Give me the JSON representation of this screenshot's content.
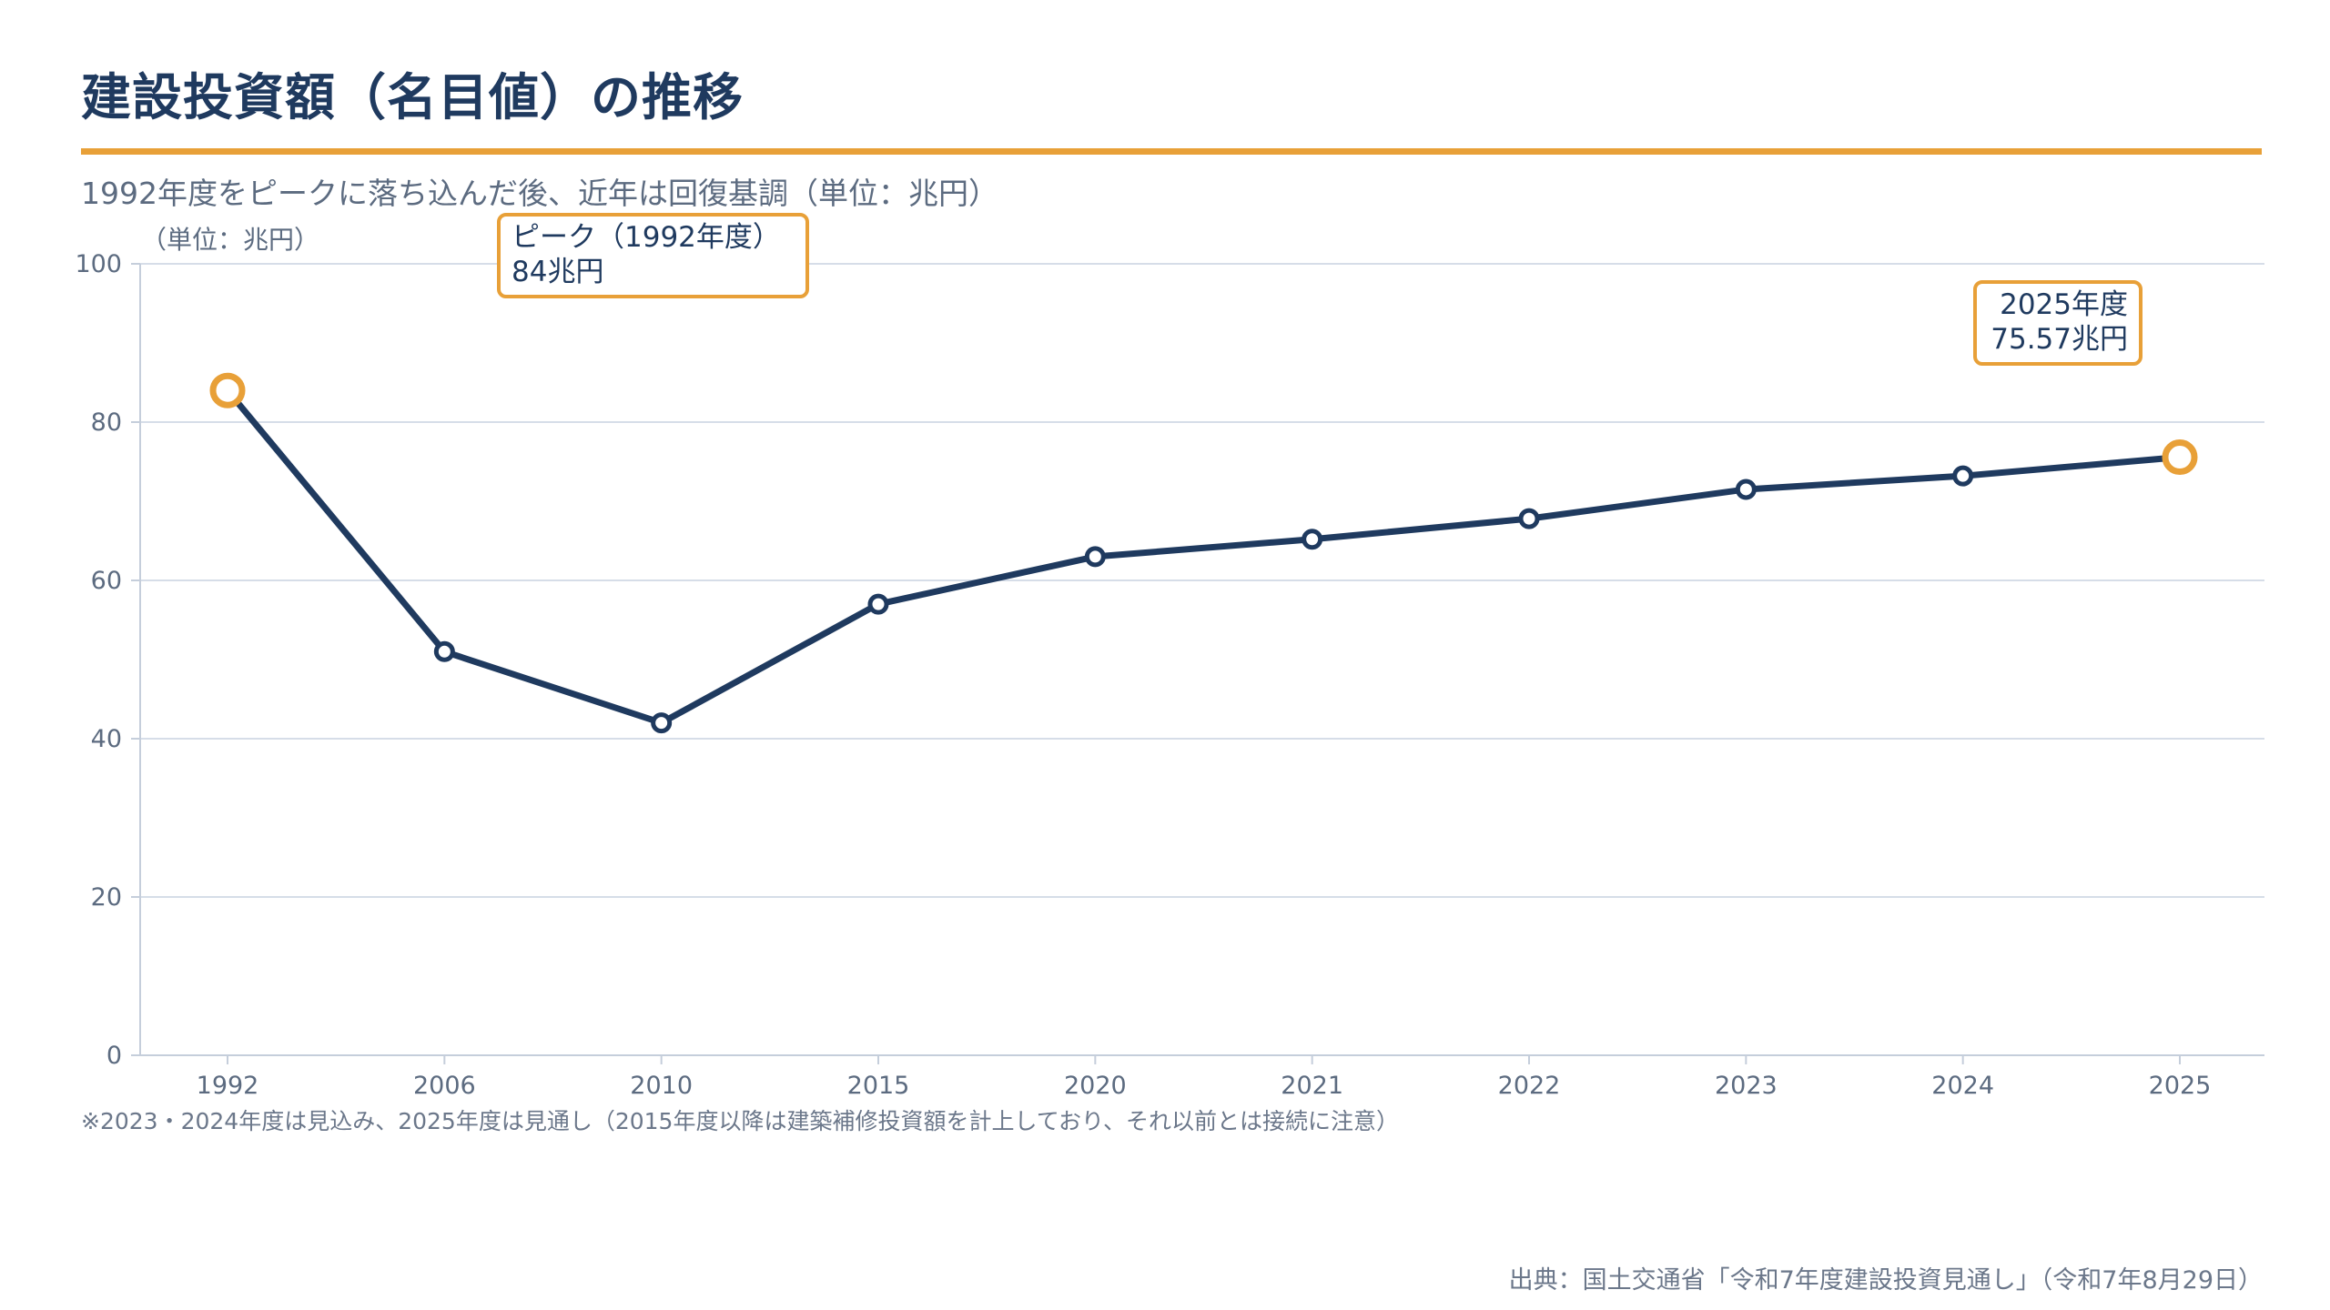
{
  "header": {
    "title": "建設投資額（名目値）の推移",
    "subtitle": "1992年度をピークに落ち込んだ後、近年は回復基調（単位：兆円）"
  },
  "chart_unit_label": "（単位：兆円）",
  "callouts": {
    "peak": {
      "line1": "ピーク（1992年度）",
      "line2": "84兆円"
    },
    "latest": {
      "line1": "2025年度",
      "line2": "75.57兆円"
    }
  },
  "footnote": "※2023・2024年度は見込み、2025年度は見通し（2015年度以降は建築補修投資額を計上しており、それ以前とは接続に注意）",
  "source": "出典：国土交通省「令和7年度建設投資見通し」（令和7年8月29日）",
  "colors": {
    "line": "#1f3a5f",
    "accent": "#e8a038",
    "grid": "#d6dde8"
  },
  "chart_data": {
    "type": "line",
    "categories": [
      "1992",
      "2006",
      "2010",
      "2015",
      "2020",
      "2021",
      "2022",
      "2023",
      "2024",
      "2025"
    ],
    "values": [
      84,
      51,
      42,
      57,
      63,
      65.2,
      67.8,
      71.5,
      73.2,
      75.57
    ],
    "ylim": [
      0,
      100
    ],
    "yticks": [
      0,
      20,
      40,
      60,
      80,
      100
    ],
    "highlight_categories": [
      "1992",
      "2025"
    ],
    "grid": true,
    "legend": "none"
  }
}
